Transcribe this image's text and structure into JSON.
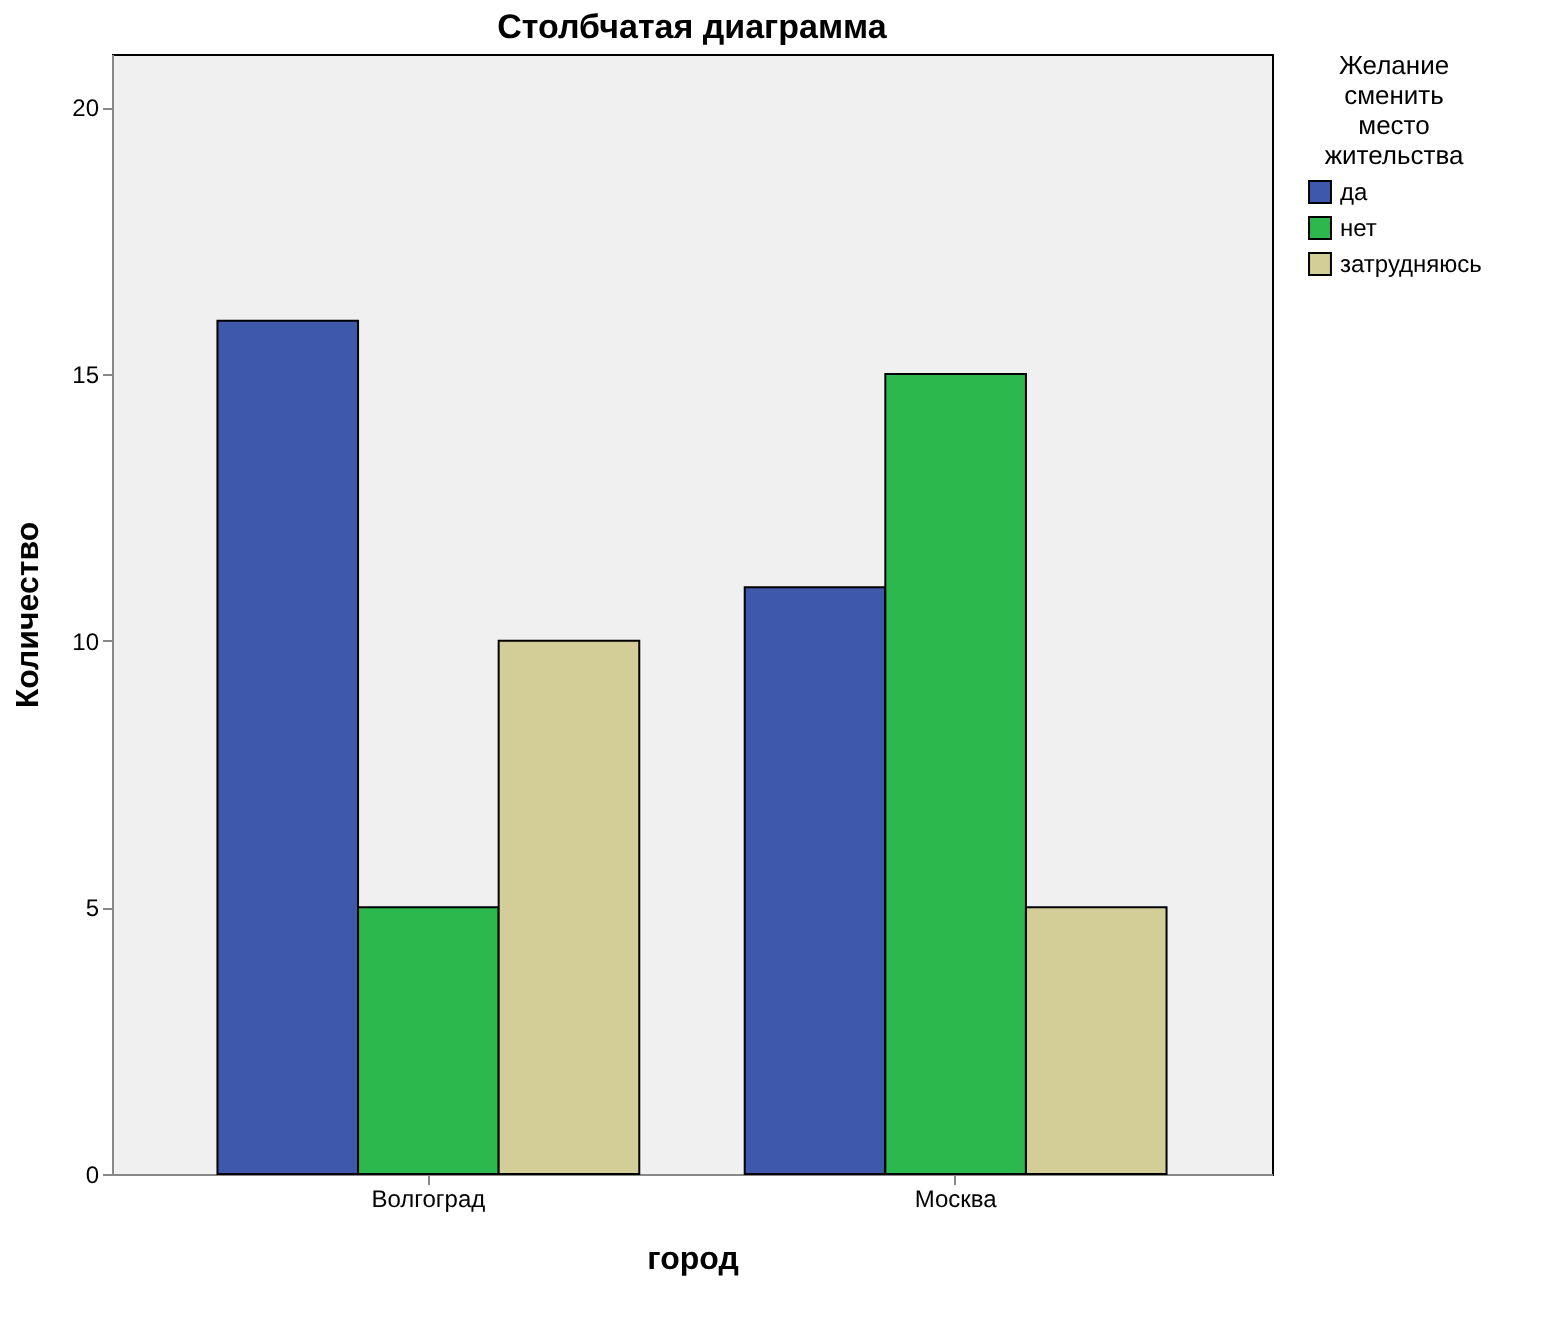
{
  "chart_data": {
    "type": "bar",
    "title": "Столбчатая диаграмма",
    "xlabel": "город",
    "ylabel": "Количество",
    "legend_title": "Желание сменить место жительства",
    "categories": [
      "Волгоград",
      "Москва"
    ],
    "series": [
      {
        "name": "да",
        "color": "#3e58ac",
        "values": [
          16,
          11
        ]
      },
      {
        "name": "нет",
        "color": "#2db84d",
        "values": [
          5,
          15
        ]
      },
      {
        "name": "затрудняюсь",
        "color": "#d3ce97",
        "values": [
          10,
          5
        ]
      }
    ],
    "ylim": [
      0,
      21
    ],
    "yticks": [
      0,
      5,
      10,
      15,
      20
    ],
    "grid": false,
    "legend": "top right"
  }
}
